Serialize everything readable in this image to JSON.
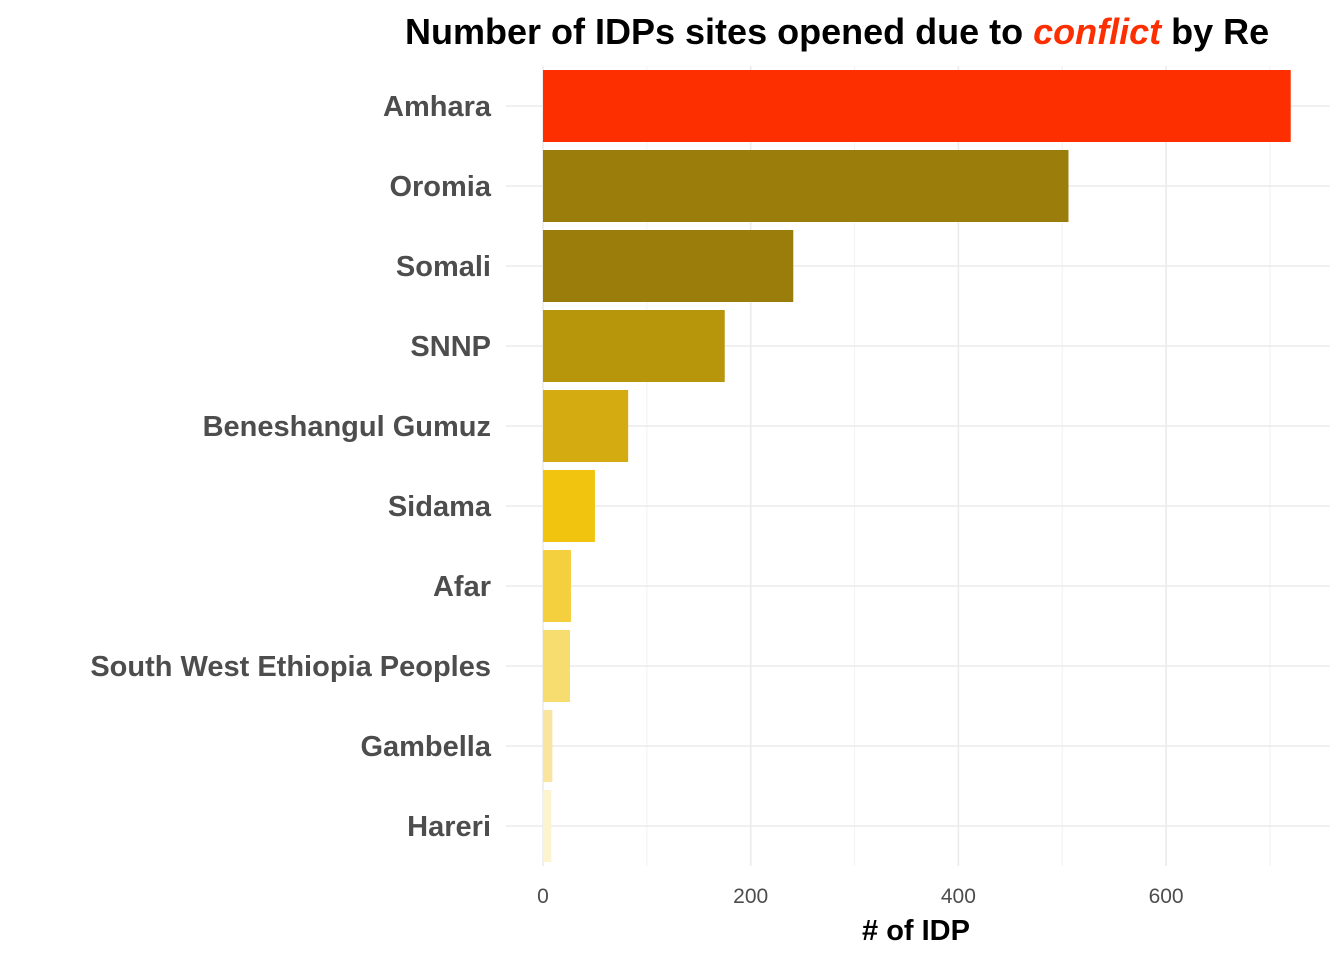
{
  "chart_data": {
    "type": "bar",
    "orientation": "horizontal",
    "title": {
      "prefix": "Number of IDPs sites opened due to ",
      "emphasis": "conflict",
      "suffix": " by Re"
    },
    "xlabel": "# of IDP",
    "ylabel": "",
    "xlim": [
      0,
      760
    ],
    "xticks": [
      0,
      200,
      400,
      600
    ],
    "grid": true,
    "legend": "none",
    "categories": [
      "Amhara",
      "Oromia",
      "Somali",
      "SNNP",
      "Beneshangul Gumuz",
      "Sidama",
      "Afar",
      "South West Ethiopia Peoples",
      "Gambella",
      "Hareri"
    ],
    "values": [
      720,
      506,
      241,
      175,
      82,
      50,
      27,
      26,
      9,
      8
    ],
    "bar_colors": [
      "#fd2e00",
      "#9a7d0a",
      "#9a7d0a",
      "#b8960b",
      "#d4ab11",
      "#f1c40f",
      "#f4d03f",
      "#f7dc6f",
      "#fae5a0",
      "#fcf3cf"
    ],
    "colors": {
      "title": "#000000",
      "emphasis": "#fd2e00",
      "labels": "#4d4d4d",
      "grid": "#ebebeb"
    }
  }
}
